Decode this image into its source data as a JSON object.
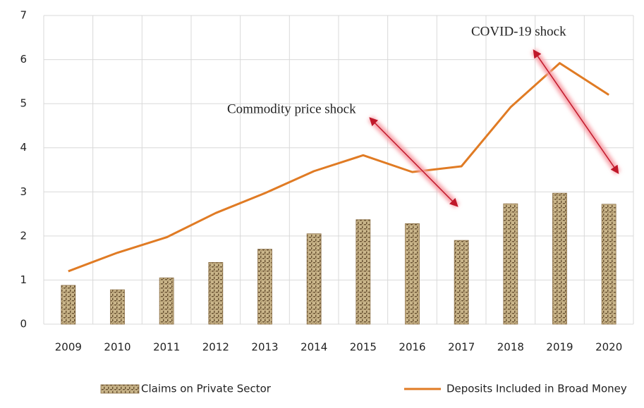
{
  "chart_data": {
    "type": "combo",
    "categories": [
      "2009",
      "2010",
      "2011",
      "2012",
      "2013",
      "2014",
      "2015",
      "2016",
      "2017",
      "2018",
      "2019",
      "2020"
    ],
    "series": [
      {
        "name": "Claims on Private Sector",
        "type": "bar",
        "color": "#b39a6a",
        "values": [
          0.88,
          0.78,
          1.05,
          1.4,
          1.7,
          2.05,
          2.37,
          2.28,
          1.9,
          2.73,
          2.97,
          2.72
        ]
      },
      {
        "name": "Deposits Included in Broad Money",
        "type": "line",
        "color": "#e07b24",
        "values": [
          1.2,
          1.62,
          1.97,
          2.52,
          2.97,
          3.47,
          3.83,
          3.45,
          3.58,
          4.92,
          5.92,
          5.2
        ]
      }
    ],
    "annotations": [
      "Commodity price shock",
      "COVID-19 shock"
    ],
    "ylim": [
      0,
      7
    ],
    "yticks": [
      0,
      1,
      2,
      3,
      4,
      5,
      6,
      7
    ],
    "grid": true,
    "legend": "bottom"
  }
}
